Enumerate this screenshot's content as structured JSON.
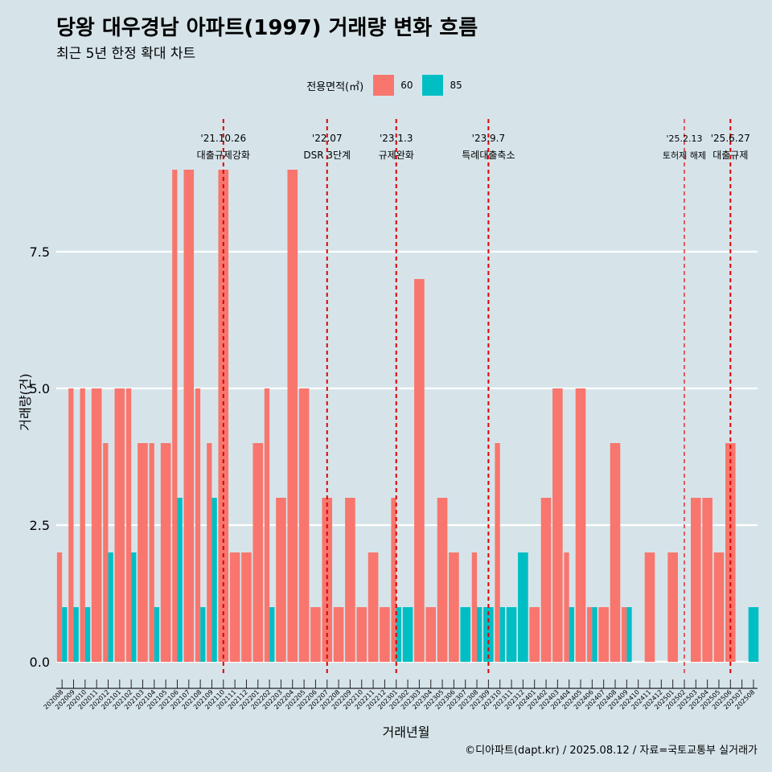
{
  "header": {
    "title": "당왕 대우경남 아파트(1997) 거래량 변화 흐름",
    "subtitle": "최근 5년 한정 확대 차트"
  },
  "legend": {
    "title": "전용면적(㎡)",
    "items": [
      {
        "label": "60",
        "color": "#f8766d"
      },
      {
        "label": "85",
        "color": "#00bfc4"
      }
    ]
  },
  "caption": "©디아파트(dapt.kr) / 2025.08.12 / 자료=국토교통부 실거래가",
  "chart_data": {
    "type": "bar",
    "title": "당왕 대우경남 아파트(1997) 거래량 변화 흐름",
    "xlabel": "거래년월",
    "ylabel": "거래량(건)",
    "ylim": [
      -0.5,
      10.3
    ],
    "yticks": [
      0,
      2.5,
      5,
      7.5
    ],
    "ytick_labels": [
      "0.0",
      "2.5",
      "5.0",
      "7.5"
    ],
    "categories": [
      "202008",
      "202009",
      "202010",
      "202011",
      "202012",
      "202101",
      "202102",
      "202103",
      "202104",
      "202105",
      "202106",
      "202107",
      "202108",
      "202109",
      "202110",
      "202111",
      "202112",
      "202201",
      "202202",
      "202203",
      "202204",
      "202205",
      "202206",
      "202207",
      "202208",
      "202209",
      "202210",
      "202211",
      "202212",
      "202301",
      "202302",
      "202303",
      "202304",
      "202305",
      "202306",
      "202307",
      "202308",
      "202309",
      "202310",
      "202311",
      "202312",
      "202401",
      "202402",
      "202403",
      "202404",
      "202405",
      "202406",
      "202407",
      "202408",
      "202409",
      "202410",
      "202411",
      "202412",
      "202501",
      "202502",
      "202503",
      "202504",
      "202505",
      "202506",
      "202507",
      "202508"
    ],
    "series": [
      {
        "name": "60",
        "color": "#f8766d",
        "values": [
          2,
          5,
          5,
          5,
          4,
          5,
          5,
          4,
          4,
          4,
          9,
          9,
          5,
          4,
          9,
          2,
          2,
          4,
          5,
          3,
          9,
          5,
          1,
          3,
          1,
          3,
          1,
          2,
          1,
          3,
          0,
          7,
          1,
          3,
          2,
          0,
          2,
          0,
          4,
          0,
          0,
          1,
          3,
          5,
          2,
          5,
          1,
          1,
          4,
          1,
          0,
          2,
          0,
          2,
          0,
          3,
          3,
          2,
          4,
          0,
          0
        ]
      },
      {
        "name": "85",
        "color": "#00bfc4",
        "values": [
          1,
          1,
          1,
          0,
          2,
          0,
          2,
          0,
          1,
          0,
          3,
          0,
          1,
          3,
          0,
          0,
          0,
          0,
          1,
          0,
          0,
          0,
          0,
          0,
          0,
          0,
          0,
          0,
          0,
          1,
          1,
          0,
          0,
          0,
          0,
          1,
          1,
          1,
          1,
          1,
          2,
          0,
          0,
          0,
          1,
          0,
          1,
          0,
          0,
          1,
          0,
          0,
          0,
          0,
          0,
          0,
          0,
          0,
          0,
          0,
          1
        ]
      }
    ],
    "events": [
      {
        "date": "'21.10.26",
        "label": "대출규제강화",
        "position": 14
      },
      {
        "date": "'22.07",
        "label": "DSR 3단계",
        "position": 23
      },
      {
        "date": "'23.1.3",
        "label": "규제완화",
        "position": 29
      },
      {
        "date": "'23.9.7",
        "label": "특례대출축소",
        "position": 37
      },
      {
        "date": "'25.2.13",
        "label": "토허제 해제",
        "position": 54
      },
      {
        "date": "'25.6.27",
        "label": "대출규제",
        "position": 58
      }
    ],
    "grid": true,
    "legend_position": "top"
  }
}
